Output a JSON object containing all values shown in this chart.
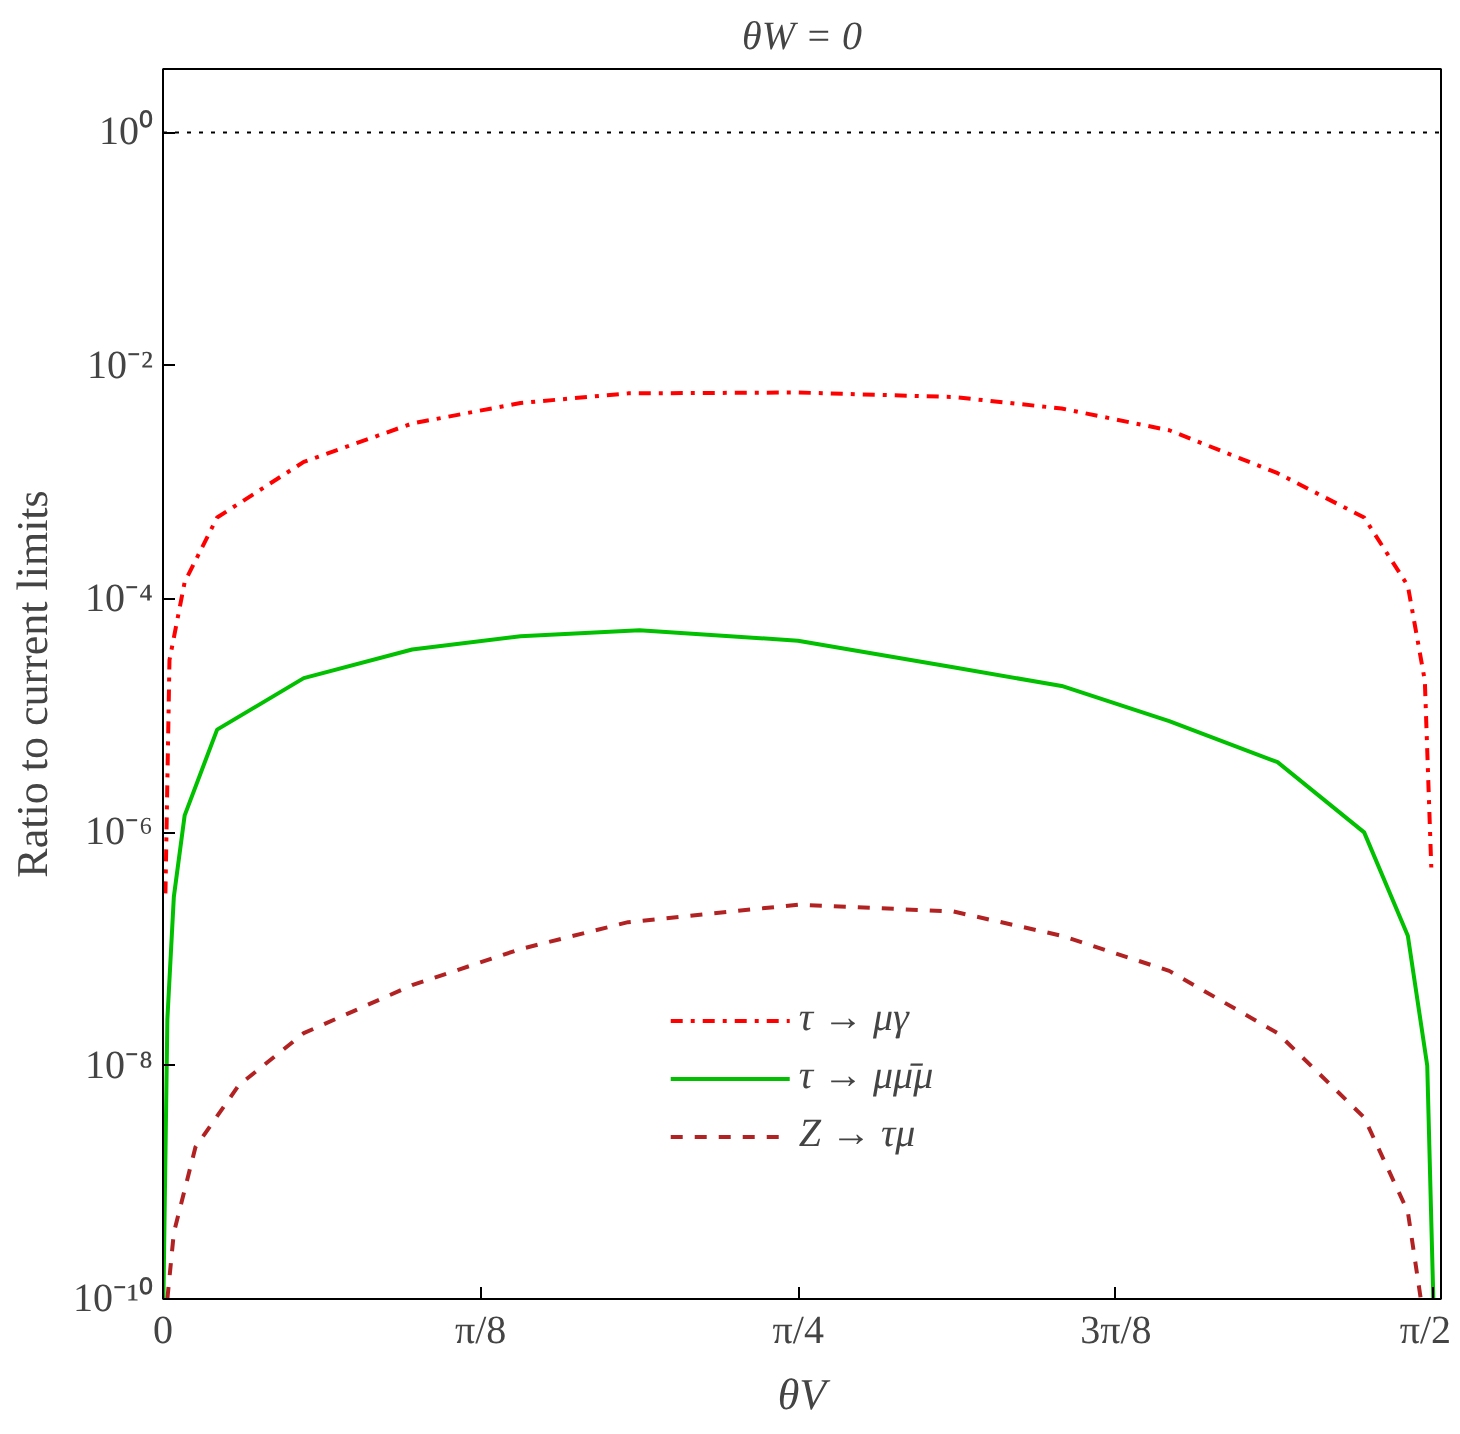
{
  "chart_data": {
    "type": "line",
    "title": "θW = 0",
    "xlabel": "θV",
    "ylabel": "Ratio to current limits",
    "log": "y",
    "grid": false,
    "legend": "bottom",
    "marker": "none",
    "xlim": [
      0,
      1.58
    ],
    "ylim": [
      1e-10,
      3.5
    ],
    "xticks": [
      0,
      {
        "value": 0.3927,
        "label": "π/8"
      },
      {
        "value": 0.7854,
        "label": "π/4"
      },
      {
        "value": 1.1781,
        "label": "3π/8"
      },
      {
        "value": 1.5708,
        "label": "π/2"
      }
    ],
    "yticks": [
      {
        "value": 1,
        "label": "10⁰"
      },
      {
        "value": 0.01,
        "label": "10⁻²"
      },
      {
        "value": 0.0001,
        "label": "10⁻⁴"
      },
      {
        "value": 1e-06,
        "label": "10⁻⁶"
      },
      {
        "value": 1e-08,
        "label": "10⁻⁸"
      },
      {
        "value": 1e-10,
        "label": "10⁻¹⁰"
      }
    ],
    "ref_lines": [
      {
        "axis": "y",
        "value": 1,
        "color": "#000000",
        "line_style": "dotted"
      }
    ],
    "series": [
      {
        "name": "τ → μγ",
        "color": "#ff0000",
        "line_style": "dashdot",
        "x": [
          0.003,
          0.008,
          0.0268,
          0.0669,
          0.174,
          0.308,
          0.442,
          0.575,
          0.785,
          0.977,
          1.111,
          1.244,
          1.378,
          1.485,
          1.539,
          1.56,
          1.568
        ],
        "values": [
          3e-07,
          3e-05,
          0.00014,
          0.0005,
          0.0015,
          0.0032,
          0.0048,
          0.0058,
          0.0059,
          0.0054,
          0.0043,
          0.0028,
          0.0012,
          0.0005,
          0.00013,
          2e-05,
          5e-07
        ]
      },
      {
        "name": "τ → μμ̄μ",
        "color": "#00c000",
        "line_style": "solid",
        "x": [
          0.0005,
          0.0054,
          0.0134,
          0.0268,
          0.0669,
          0.174,
          0.308,
          0.442,
          0.589,
          0.785,
          0.977,
          1.111,
          1.244,
          1.378,
          1.485,
          1.539,
          1.563,
          1.5705
        ],
        "values": [
          1e-10,
          2.5e-08,
          2.8e-07,
          1.4e-06,
          7.6e-06,
          2.1e-05,
          3.7e-05,
          4.8e-05,
          5.4e-05,
          4.4e-05,
          2.6e-05,
          1.8e-05,
          9e-06,
          4e-06,
          1e-06,
          1.3e-07,
          1e-08,
          1e-10
        ]
      },
      {
        "name": "Z → τμ",
        "color": "#b22222",
        "line_style": "dashed",
        "x": [
          0.0054,
          0.0134,
          0.0401,
          0.0937,
          0.174,
          0.308,
          0.442,
          0.575,
          0.785,
          0.977,
          1.111,
          1.244,
          1.378,
          1.485,
          1.539,
          1.555
        ],
        "values": [
          1e-10,
          3.7e-10,
          2e-09,
          6.8e-09,
          1.9e-08,
          4.9e-08,
          1e-07,
          1.7e-07,
          2.4e-07,
          2.1e-07,
          1.3e-07,
          6.5e-08,
          1.9e-08,
          3.6e-09,
          5.6e-10,
          1e-10
        ]
      }
    ]
  }
}
